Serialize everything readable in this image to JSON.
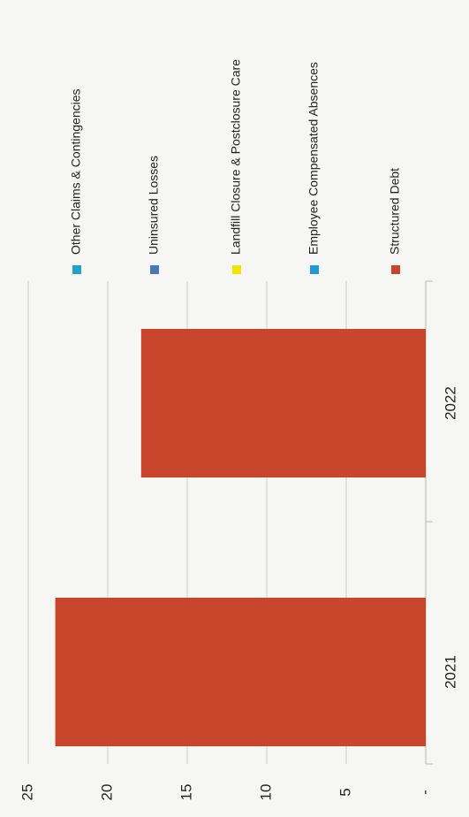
{
  "chart_data": {
    "type": "bar",
    "orientation": "rotated-page",
    "categories": [
      "2021",
      "2022"
    ],
    "series": [
      {
        "name": "Structured Debt",
        "values": [
          23.3,
          17.9
        ],
        "color": "#c8442a"
      },
      {
        "name": "Employee Compensated Absences",
        "values": [
          0,
          0
        ],
        "color": "#1f9ad6"
      },
      {
        "name": "Landfill Closure & Postclosure Care",
        "values": [
          0,
          0
        ],
        "color": "#f2e600"
      },
      {
        "name": "Uninsured Losses",
        "values": [
          0,
          0
        ],
        "color": "#4a78b8"
      },
      {
        "name": "Other Claims & Contingencies",
        "values": [
          0,
          0
        ],
        "color": "#22a2c8"
      }
    ],
    "yticks": [
      "-",
      "5",
      "10",
      "15",
      "20",
      "25"
    ],
    "ylim": [
      0,
      25
    ],
    "grid": true,
    "legend_position": "right"
  }
}
